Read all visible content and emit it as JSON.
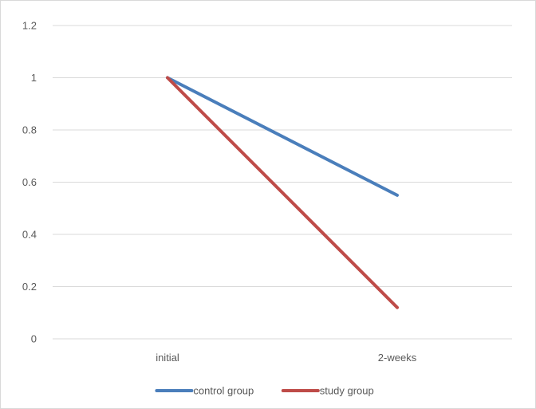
{
  "chart_data": {
    "type": "line",
    "categories": [
      "initial",
      "2-weeks"
    ],
    "series": [
      {
        "name": "control group",
        "values": [
          1,
          0.55
        ],
        "color": "#4a7ebb"
      },
      {
        "name": "study group",
        "values": [
          1,
          0.12
        ],
        "color": "#be4b48"
      }
    ],
    "ylim": [
      0,
      1.2
    ],
    "yticks": [
      "0",
      "0.2",
      "0.4",
      "0.6",
      "0.8",
      "1",
      "1.2"
    ],
    "grid": true,
    "legend_position": "bottom"
  },
  "colors": {
    "gridline": "#d9d9d9",
    "text": "#595959"
  }
}
